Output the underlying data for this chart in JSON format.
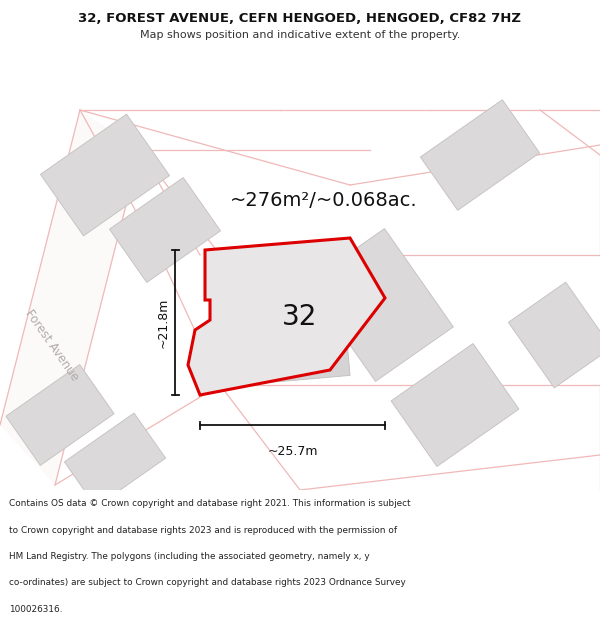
{
  "title_line1": "32, FOREST AVENUE, CEFN HENGOED, HENGOED, CF82 7HZ",
  "title_line2": "Map shows position and indicative extent of the property.",
  "area_text": "~276m²/~0.068ac.",
  "width_label": "~25.7m",
  "height_label": "~21.8m",
  "number_label": "32",
  "road_label": "Forest Avenue",
  "footer_lines": [
    "Contains OS data © Crown copyright and database right 2021. This information is subject",
    "to Crown copyright and database rights 2023 and is reproduced with the permission of",
    "HM Land Registry. The polygons (including the associated geometry, namely x, y",
    "co-ordinates) are subject to Crown copyright and database rights 2023 Ordnance Survey",
    "100026316."
  ],
  "map_bg": "#f5f3f3",
  "plot_fill": "#e8e6e6",
  "plot_edge": "#dd0000",
  "road_color": "#f0b8b8",
  "road_fill": "#faf5f5",
  "building_fill": "#dbd9d9",
  "building_edge": "#c8c4c4",
  "dim_color": "#111111",
  "text_dark": "#111111",
  "text_gray": "#b0acac",
  "footer_color": "#222222",
  "title_bg": "#ffffff",
  "footer_bg": "#ffffff"
}
